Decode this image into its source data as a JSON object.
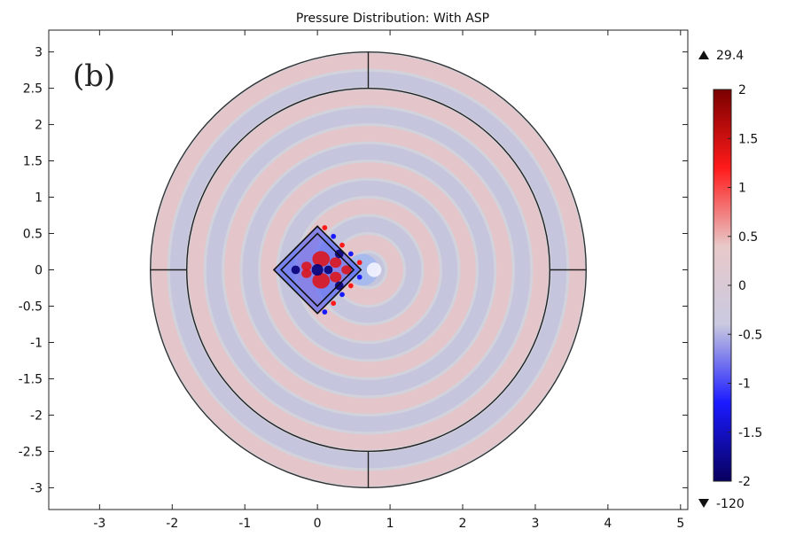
{
  "chart_data": {
    "type": "heatmap",
    "title": "Pressure Distribution: With ASP",
    "panel_label": "(b)",
    "xlim": [
      -3.7,
      5.1
    ],
    "ylim": [
      -3.3,
      3.3
    ],
    "x_ticks": [
      -3,
      -2,
      -1,
      0,
      1,
      2,
      3,
      4,
      5
    ],
    "y_ticks": [
      3,
      2.5,
      2,
      1.5,
      1,
      0.5,
      0,
      -0.5,
      -1,
      -1.5,
      -2,
      -2.5,
      -3
    ],
    "x_tick_labels": [
      "-3",
      "-2",
      "-1",
      "0",
      "1",
      "2",
      "3",
      "4",
      "5"
    ],
    "y_tick_labels": [
      "3",
      "2.5",
      "2",
      "1.5",
      "1",
      "0.5",
      "0",
      "-0.5",
      "-1",
      "-1.5",
      "-2",
      "-2.5",
      "-3"
    ],
    "geometry": {
      "outer_circle": {
        "cx": 0.7,
        "cy": 0,
        "r": 3.0
      },
      "inner_circle": {
        "cx": 0.7,
        "cy": 0,
        "r": 2.5
      },
      "divider_segments": [
        [
          [
            0.7,
            2.5
          ],
          [
            0.7,
            3.0
          ]
        ],
        [
          [
            0.7,
            -2.5
          ],
          [
            0.7,
            -3.0
          ]
        ],
        [
          [
            -2.3,
            0
          ],
          [
            -1.8,
            0
          ]
        ],
        [
          [
            3.2,
            0
          ],
          [
            3.7,
            0
          ]
        ]
      ],
      "outer_diamond": [
        [
          0,
          0.6
        ],
        [
          0.6,
          0
        ],
        [
          0,
          -0.6
        ],
        [
          -0.6,
          0
        ]
      ],
      "inner_diamond": [
        [
          0,
          0.5
        ],
        [
          0.5,
          0
        ],
        [
          0,
          -0.5
        ],
        [
          -0.5,
          0
        ]
      ]
    },
    "colorbar": {
      "min": -2,
      "max": 2,
      "ticks": [
        2,
        1.5,
        1,
        0.5,
        0,
        -0.5,
        -1,
        -1.5,
        -2
      ],
      "tick_labels": [
        "2",
        "1.5",
        "1",
        "0.5",
        "0",
        "-0.5",
        "-1",
        "-1.5",
        "-2"
      ],
      "range_max_label": "29.4",
      "range_min_label": "-120",
      "colors": [
        "#08005e",
        "#1a1aff",
        "#c9c9e0",
        "#e8c9c9",
        "#ff1a1a",
        "#7a0000"
      ]
    },
    "field": {
      "source": [
        0.7,
        0
      ],
      "wavelength": 0.5,
      "amplitude": 0.35,
      "background": "#d2d2dc"
    }
  }
}
